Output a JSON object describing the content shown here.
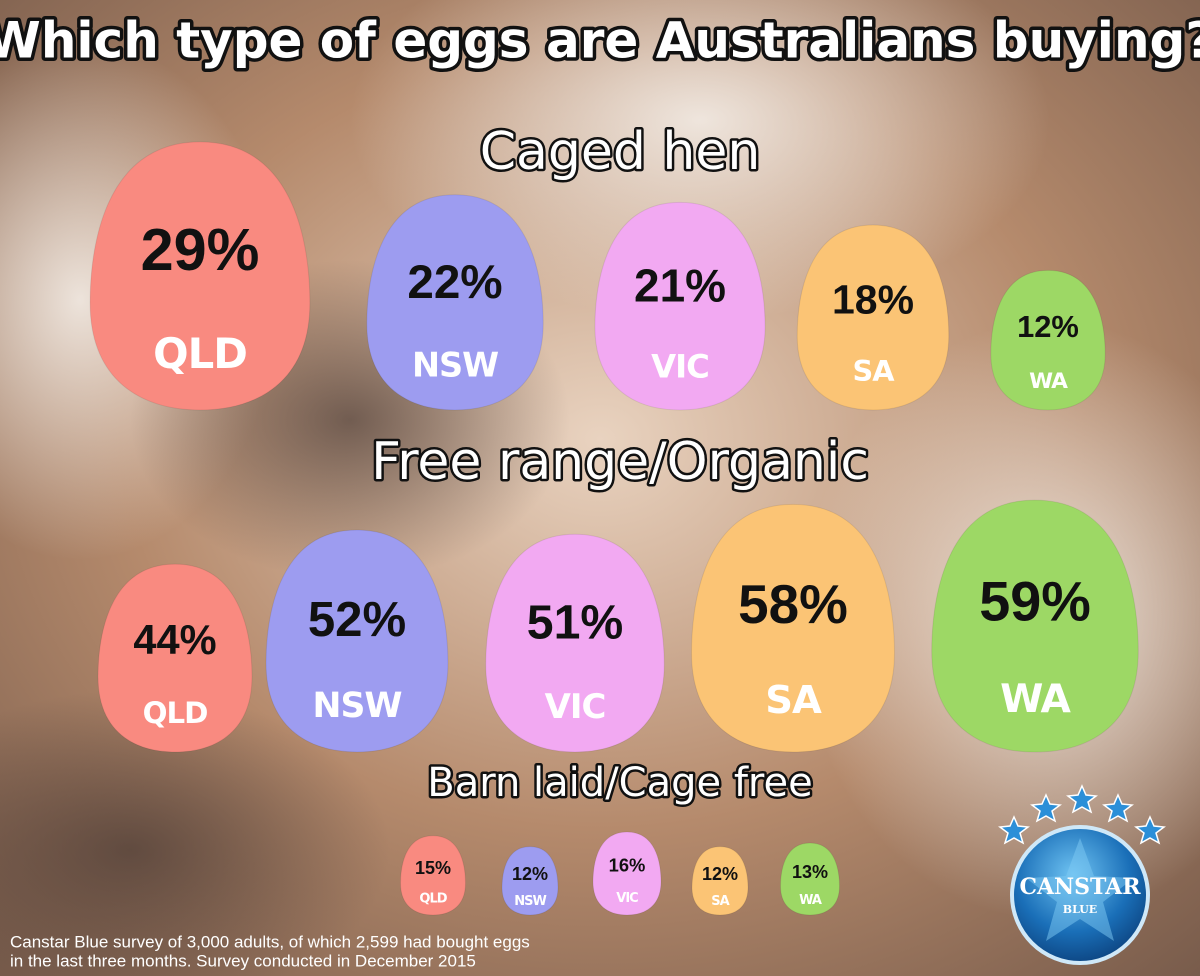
{
  "title": "Which type of eggs are Australians buying?",
  "chart_data": [
    {
      "type": "egg",
      "title": "Caged hen",
      "categories": [
        "QLD",
        "NSW",
        "VIC",
        "SA",
        "WA"
      ],
      "values": [
        29,
        22,
        21,
        18,
        12
      ],
      "value_labels": [
        "29%",
        "22%",
        "21%",
        "18%",
        "12%"
      ],
      "colors": [
        "#f98a80",
        "#9d9cf0",
        "#f2a9f2",
        "#fbc475",
        "#9dd865"
      ]
    },
    {
      "type": "egg",
      "title": "Free range/Organic",
      "categories": [
        "QLD",
        "NSW",
        "VIC",
        "SA",
        "WA"
      ],
      "values": [
        44,
        52,
        51,
        58,
        59
      ],
      "value_labels": [
        "44%",
        "52%",
        "51%",
        "58%",
        "59%"
      ],
      "colors": [
        "#f98a80",
        "#9d9cf0",
        "#f2a9f2",
        "#fbc475",
        "#9dd865"
      ]
    },
    {
      "type": "egg",
      "title": "Barn laid/Cage free",
      "categories": [
        "QLD",
        "NSW",
        "VIC",
        "SA",
        "WA"
      ],
      "values": [
        15,
        12,
        16,
        12,
        13
      ],
      "value_labels": [
        "15%",
        "12%",
        "16%",
        "12%",
        "13%"
      ],
      "colors": [
        "#f98a80",
        "#9d9cf0",
        "#f2a9f2",
        "#fbc475",
        "#9dd865"
      ]
    }
  ],
  "footnote": [
    "Canstar Blue survey of 3,000 adults, of which 2,599 had bought eggs",
    "in the last three months. Survey conducted in December 2015"
  ],
  "logo": {
    "name": "CANSTAR",
    "sub": "BLUE"
  }
}
